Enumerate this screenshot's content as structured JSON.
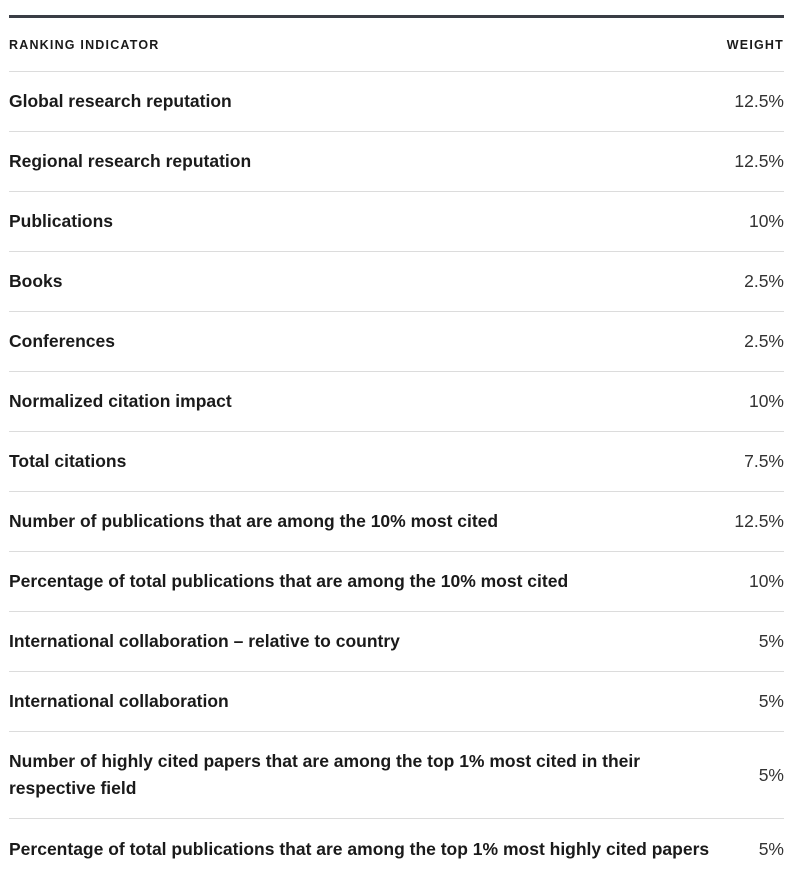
{
  "table": {
    "header": {
      "indicator": "RANKING INDICATOR",
      "weight": "WEIGHT"
    },
    "rows": [
      {
        "indicator": "Global research reputation",
        "weight": "12.5%"
      },
      {
        "indicator": "Regional research reputation",
        "weight": "12.5%"
      },
      {
        "indicator": "Publications",
        "weight": "10%"
      },
      {
        "indicator": "Books",
        "weight": "2.5%"
      },
      {
        "indicator": "Conferences",
        "weight": "2.5%"
      },
      {
        "indicator": "Normalized citation impact",
        "weight": "10%"
      },
      {
        "indicator": "Total citations",
        "weight": "7.5%"
      },
      {
        "indicator": "Number of publications that are among the 10% most cited",
        "weight": "12.5%"
      },
      {
        "indicator": "Percentage of total publications that are among the 10% most cited",
        "weight": "10%"
      },
      {
        "indicator": "International collaboration – relative to country",
        "weight": "5%"
      },
      {
        "indicator": "International collaboration",
        "weight": "5%"
      },
      {
        "indicator": "Number of highly cited papers that are among the top 1% most cited in their respective field",
        "weight": "5%"
      },
      {
        "indicator": "Percentage of total publications that are among the top 1% most highly cited papers",
        "weight": "5%"
      }
    ]
  }
}
